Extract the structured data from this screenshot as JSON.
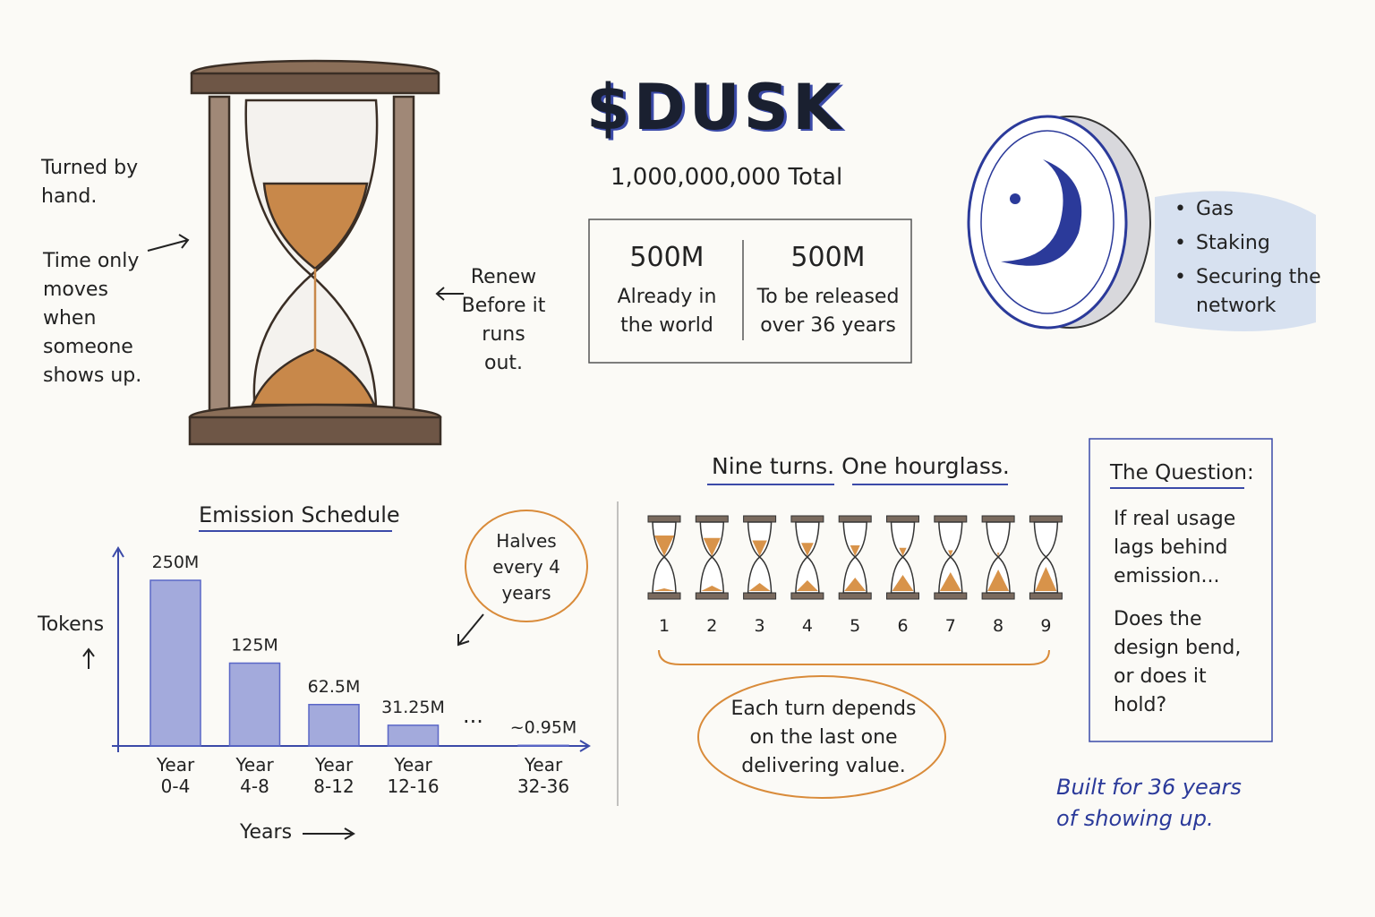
{
  "title": "$DUSK",
  "total_supply": "1,000,000,000 Total",
  "supply_split": [
    {
      "amount": "500M",
      "label": "Already in the world"
    },
    {
      "amount": "500M",
      "label": "To be released over 36 years"
    }
  ],
  "hourglass_notes": {
    "left": [
      "Turned by hand.",
      "Time only moves when someone shows up."
    ],
    "right": "Renew Before it runs out."
  },
  "token_uses": [
    "Gas",
    "Staking",
    "Securing the network"
  ],
  "chart_data": {
    "type": "bar",
    "title": "Emission Schedule",
    "y_label": "Tokens",
    "x_label": "Years",
    "categories": [
      "Year 0-4",
      "Year 4-8",
      "Year 8-12",
      "Year 12-16",
      "Year 32-36"
    ],
    "values": [
      250,
      125,
      62.5,
      31.25,
      0.95
    ],
    "value_labels": [
      "250M",
      "125M",
      "62.5M",
      "31.25M",
      "~0.95M"
    ],
    "color": "#5b67c7",
    "gap_marker": "...",
    "annotation": "Halves every 4 years"
  },
  "nine_turns": {
    "title": "Nine turns. One hourglass.",
    "turns": [
      1,
      2,
      3,
      4,
      5,
      6,
      7,
      8,
      9
    ],
    "note": "Each turn depends on the last one delivering value."
  },
  "question": {
    "title": "The Question:",
    "lines": [
      "If real usage lags behind emission...",
      "Does the design bend, or does it hold?"
    ]
  },
  "footer": "Built for 36 years of showing up."
}
